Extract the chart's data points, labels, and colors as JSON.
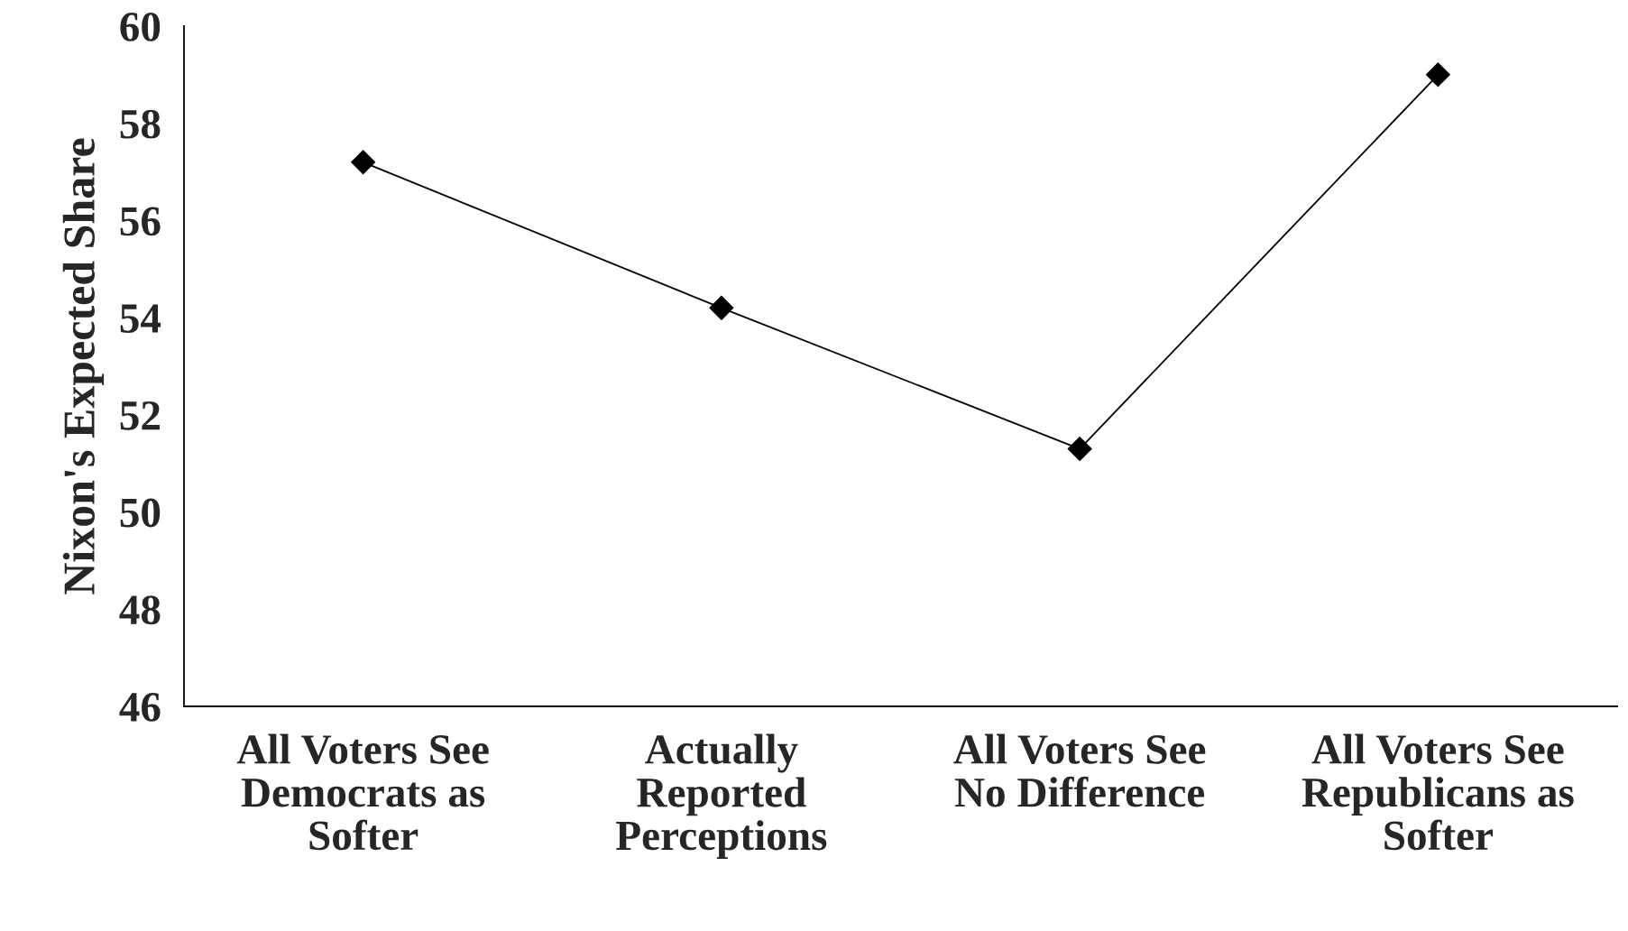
{
  "chart_data": {
    "type": "line",
    "ylabel": "Nixon's Expected Share",
    "categories": [
      "All Voters See\nDemocrats as\nSofter",
      "Actually\nReported\nPerceptions",
      "All Voters See\nNo Difference",
      "All Voters See\nRepublicans as\nSofter"
    ],
    "series": [
      {
        "color": "#000000",
        "values": [
          57.2,
          54.2,
          51.3,
          59.0
        ]
      }
    ],
    "ylim": [
      46,
      60
    ],
    "yticks": [
      46,
      48,
      50,
      52,
      54,
      56,
      58,
      60
    ],
    "marker": "diamond",
    "line_style": "solid",
    "grid": false
  }
}
